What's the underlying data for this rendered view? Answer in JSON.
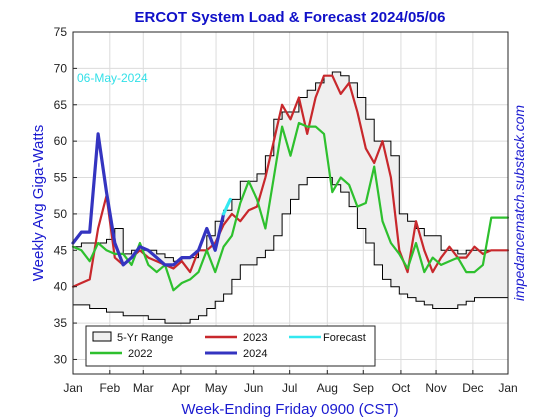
{
  "chart_data": {
    "type": "line",
    "title": "ERCOT System Load & Forecast 2024/05/06",
    "xlabel": "Week-Ending Friday 0900 (CST)",
    "ylabel": "Weekly Avg Giga-Watts",
    "annotation": "06-May-2024",
    "side_note": "impedancematch.substack.com",
    "x_unit": "week",
    "xlim": [
      0,
      52
    ],
    "ylim": [
      28,
      75
    ],
    "yticks": [
      30,
      35,
      40,
      45,
      50,
      55,
      60,
      65,
      70,
      75
    ],
    "x_ticks": [
      {
        "label": "Jan",
        "x": 0
      },
      {
        "label": "Feb",
        "x": 4.4
      },
      {
        "label": "Mar",
        "x": 8.4
      },
      {
        "label": "Apr",
        "x": 12.9
      },
      {
        "label": "May",
        "x": 17.1
      },
      {
        "label": "Jun",
        "x": 21.6
      },
      {
        "label": "Jul",
        "x": 25.9
      },
      {
        "label": "Aug",
        "x": 30.4
      },
      {
        "label": "Sep",
        "x": 34.7
      },
      {
        "label": "Oct",
        "x": 39.2
      },
      {
        "label": "Nov",
        "x": 43.4
      },
      {
        "label": "Dec",
        "x": 47.8
      },
      {
        "label": "Jan",
        "x": 52
      }
    ],
    "grid": true,
    "legend_position": "bottom-left",
    "range": {
      "name": "5-Yr Range",
      "color": "#efefef",
      "edge_color": "#000000",
      "x": [
        0,
        1,
        2,
        3,
        4,
        5,
        6,
        7,
        8,
        9,
        10,
        11,
        12,
        13,
        14,
        15,
        16,
        17,
        18,
        19,
        20,
        21,
        22,
        23,
        24,
        25,
        26,
        27,
        28,
        29,
        30,
        31,
        32,
        33,
        34,
        35,
        36,
        37,
        38,
        39,
        40,
        41,
        42,
        43,
        44,
        45,
        46,
        47,
        48,
        49,
        50,
        51,
        52
      ],
      "upper": [
        45.5,
        46,
        46,
        46,
        46.5,
        48,
        44.5,
        45,
        45,
        45,
        44.5,
        44,
        43.5,
        44,
        44,
        45,
        47,
        49,
        50.5,
        52,
        54.5,
        54.5,
        55.5,
        58,
        63,
        64,
        64,
        66,
        67,
        68,
        69,
        69.5,
        69,
        68,
        66,
        63,
        60,
        60,
        58,
        50,
        49,
        48,
        47,
        47,
        45,
        45,
        44.5,
        45,
        45,
        45,
        45,
        45,
        45
      ],
      "lower": [
        37.5,
        37.5,
        37,
        37,
        36.5,
        36.5,
        36,
        36,
        36,
        35.5,
        35.5,
        35,
        35,
        35,
        35.5,
        36,
        37,
        38,
        39,
        41,
        43,
        43,
        44,
        45,
        47,
        50,
        52,
        54,
        55,
        55,
        55,
        54,
        53,
        51,
        48,
        46,
        43,
        41,
        40,
        39,
        38.5,
        38,
        37.5,
        37,
        37,
        37,
        37.5,
        38,
        38.5,
        38.5,
        38.5,
        38.5,
        38.5
      ]
    },
    "series": [
      {
        "name": "2023",
        "color": "#c8282c",
        "x": [
          0,
          1,
          2,
          3,
          4,
          5,
          6,
          7,
          8,
          9,
          10,
          11,
          12,
          13,
          14,
          15,
          16,
          17,
          18,
          19,
          20,
          21,
          22,
          23,
          24,
          25,
          26,
          27,
          28,
          29,
          30,
          31,
          32,
          33,
          34,
          35,
          36,
          37,
          38,
          39,
          40,
          41,
          42,
          43,
          44,
          45,
          46,
          47,
          48,
          49,
          50,
          51,
          52
        ],
        "values": [
          40,
          40.5,
          41,
          48,
          52.5,
          44,
          43,
          44,
          45,
          44,
          43.5,
          43,
          42.5,
          43.5,
          42,
          45,
          45,
          46,
          48.5,
          50,
          49,
          50.5,
          51,
          55,
          60,
          65,
          63,
          66,
          61,
          66,
          69,
          69,
          66.5,
          68,
          64,
          59,
          57,
          60,
          55,
          45,
          42,
          49,
          45,
          42,
          44,
          45.5,
          44,
          44,
          45.5,
          44.5,
          45,
          45,
          45
        ]
      },
      {
        "name": "2022",
        "color": "#2ec02e",
        "x": [
          0,
          1,
          2,
          3,
          4,
          5,
          6,
          7,
          8,
          9,
          10,
          11,
          12,
          13,
          14,
          15,
          16,
          17,
          18,
          19,
          20,
          21,
          22,
          23,
          24,
          25,
          26,
          27,
          28,
          29,
          30,
          31,
          32,
          33,
          34,
          35,
          36,
          37,
          38,
          39,
          40,
          41,
          42,
          43,
          44,
          45,
          46,
          47,
          48,
          49,
          50,
          51,
          52
        ],
        "values": [
          45.5,
          45,
          43.5,
          46,
          45,
          44.5,
          44.5,
          43,
          46,
          43,
          42,
          43,
          39.5,
          40.5,
          41,
          42,
          45,
          42,
          45.5,
          47,
          51.5,
          54.5,
          52,
          48,
          55,
          62,
          58,
          62.5,
          62,
          62,
          61,
          53,
          55,
          54,
          51,
          51.5,
          56.5,
          49,
          46,
          44.5,
          42.5,
          46,
          42,
          44,
          43,
          43.5,
          44,
          42,
          42,
          43,
          49.5,
          49.5,
          49.5
        ]
      },
      {
        "name": "2024",
        "color": "#3434c0",
        "x": [
          0,
          1,
          2,
          3,
          4,
          5,
          6,
          7,
          8,
          9,
          10,
          11,
          12,
          13,
          14,
          15,
          16,
          17,
          18
        ],
        "values": [
          46,
          47.5,
          47.5,
          61,
          53,
          46,
          43,
          44,
          45.5,
          45,
          44,
          43,
          43,
          44,
          44,
          45,
          48,
          45,
          50
        ]
      },
      {
        "name": "Forecast",
        "color": "#33e8f0",
        "x": [
          18,
          18.4,
          18.8
        ],
        "values": [
          50,
          51,
          52
        ]
      }
    ]
  }
}
